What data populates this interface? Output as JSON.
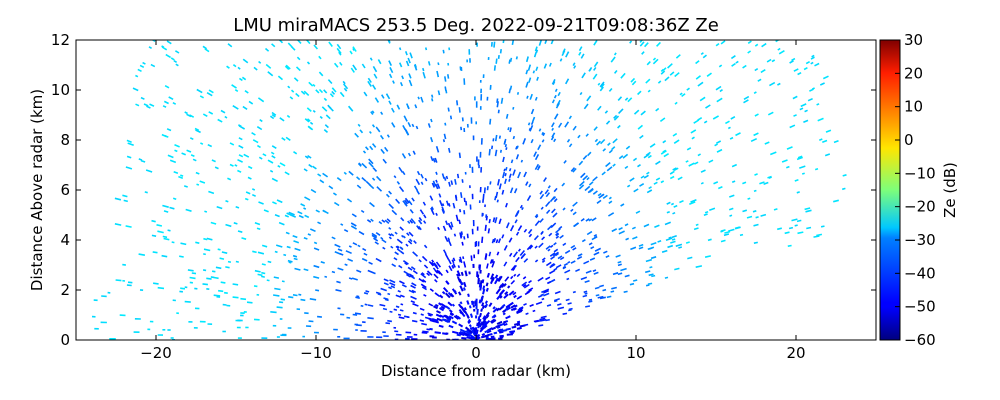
{
  "chart_data": {
    "type": "heatmap",
    "title": "LMU miraMACS 253.5 Deg. 2022-09-21T09:08:36Z  Ze",
    "xlabel": "Distance from radar (km)",
    "ylabel": "Distance Above radar  (km)",
    "xlim": [
      -25,
      25
    ],
    "ylim": [
      0,
      12
    ],
    "x_ticks": [
      -20,
      -10,
      0,
      10,
      20
    ],
    "y_ticks": [
      0,
      2,
      4,
      6,
      8,
      10,
      12
    ],
    "grid": false,
    "colorbar": {
      "label": "Ze (dB)",
      "range": [
        -60,
        30
      ],
      "ticks": [
        -60,
        -50,
        -40,
        -30,
        -20,
        -10,
        0,
        10,
        20,
        30
      ],
      "colormap": "jet"
    },
    "field": {
      "description_free": true,
      "sector_left_edge_points": [
        [
          -24.2,
          0.3
        ],
        [
          -22.5,
          6.0
        ],
        [
          -21.0,
          12.0
        ]
      ],
      "sector_right_edge_points": [
        [
          1.5,
          0.0
        ],
        [
          15.0,
          3.0
        ],
        [
          23.0,
          4.3
        ],
        [
          23.3,
          6.5
        ],
        [
          22.0,
          10.5
        ]
      ],
      "ze_near_radar_db": -52,
      "ze_mid_range_db": -40,
      "ze_far_range_db": -30
    }
  }
}
